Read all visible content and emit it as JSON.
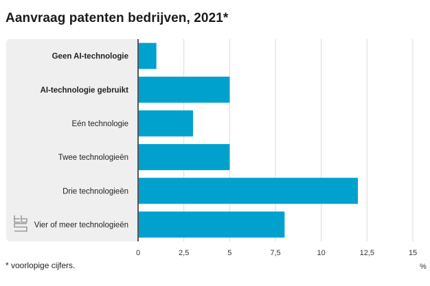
{
  "header": {
    "title": "Aanvraag patenten bedrijven, 2021*"
  },
  "footer": {
    "footnote": "* voorlopige cijfers.",
    "unit": "%"
  },
  "logo": {
    "icon": "cbs-logo-icon"
  },
  "colors": {
    "bar": "#00a1cd",
    "panel": "#efefef",
    "grid": "#d9d9d9",
    "axis": "#555555"
  },
  "chart_data": {
    "type": "bar",
    "orientation": "horizontal",
    "title": "Aanvraag patenten bedrijven, 2021*",
    "xlabel": "%",
    "ylabel": "",
    "categories": [
      "Geen AI-technologie",
      "AI-technologie gebruikt",
      "Eén technologie",
      "Twee technologieën",
      "Drie technologieën",
      "Vier of meer technologieën"
    ],
    "bold_categories": [
      true,
      true,
      false,
      false,
      false,
      false
    ],
    "values": [
      1,
      5,
      3,
      5,
      12,
      8
    ],
    "xlim": [
      0,
      15
    ],
    "xticks": [
      0,
      2.5,
      5,
      7.5,
      10,
      12.5,
      15
    ],
    "xtick_labels": [
      "0",
      "2,5",
      "5",
      "7,5",
      "10",
      "12,5",
      "15"
    ],
    "grid": true,
    "legend": "none"
  }
}
